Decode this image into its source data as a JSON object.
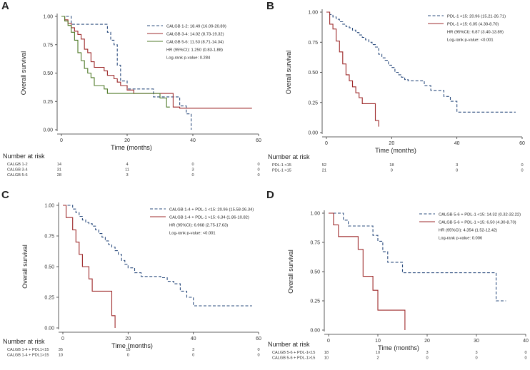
{
  "chart_data": [
    {
      "type": "line",
      "panel": "A",
      "ylabel": "Overall survival",
      "xlabel": "Time (months)",
      "xlim": [
        0,
        60
      ],
      "ylim": [
        0,
        1
      ],
      "xticks": [
        "0",
        "20",
        "40",
        "60"
      ],
      "yticks": [
        "0.00",
        "0.25",
        "0.50",
        "0.75",
        "1.00"
      ],
      "legend": [
        {
          "label": "CALGB 1-2: 18.49 (16.09-20.89)",
          "color": "#2b4c7e",
          "dash": "dashed"
        },
        {
          "label": "CALGB 3-4: 14.02 (8.73-19.32)",
          "color": "#9e2a2b",
          "dash": "solid"
        },
        {
          "label": "CALGB 5-6: 11.53 (8.71-14.34)",
          "color": "#4f7a28",
          "dash": "solid"
        }
      ],
      "stats": [
        "HR (95%CI): 1.250 (0.83-1.88)",
        "Log-rank p-value: 0.284"
      ],
      "series": [
        {
          "name": "CALGB 1-2",
          "x": [
            0,
            2,
            3,
            4,
            6,
            8,
            12,
            14,
            15,
            16,
            17,
            18,
            20,
            22,
            24,
            26,
            28,
            30,
            33,
            36,
            38,
            39.5
          ],
          "y": [
            1,
            1,
            0.93,
            0.93,
            0.93,
            0.93,
            0.93,
            0.86,
            0.79,
            0.75,
            0.57,
            0.43,
            0.36,
            0.36,
            0.36,
            0.36,
            0.29,
            0.29,
            0.29,
            0.21,
            0.14,
            0.0
          ]
        },
        {
          "name": "CALGB 3-4",
          "x": [
            0,
            1,
            2,
            3,
            4,
            5,
            6,
            7,
            8,
            9,
            10,
            11,
            12,
            13,
            14,
            15,
            16,
            17,
            18,
            20,
            22,
            24,
            26,
            28,
            30,
            32,
            34,
            36,
            58
          ],
          "y": [
            1,
            0.97,
            0.94,
            0.9,
            0.87,
            0.84,
            0.8,
            0.71,
            0.68,
            0.6,
            0.55,
            0.55,
            0.55,
            0.52,
            0.48,
            0.48,
            0.45,
            0.42,
            0.39,
            0.35,
            0.32,
            0.32,
            0.32,
            0.32,
            0.32,
            0.32,
            0.2,
            0.19,
            0.19
          ]
        },
        {
          "name": "CALGB 5-6",
          "x": [
            0,
            1,
            2,
            3,
            4,
            5,
            6,
            7,
            8,
            9,
            10,
            11,
            12,
            13,
            14,
            15,
            16,
            17,
            18,
            20,
            22,
            24,
            26,
            28,
            30,
            32,
            33
          ],
          "y": [
            1,
            0.96,
            0.92,
            0.86,
            0.79,
            0.68,
            0.61,
            0.54,
            0.5,
            0.46,
            0.39,
            0.39,
            0.39,
            0.36,
            0.32,
            0.32,
            0.32,
            0.32,
            0.32,
            0.32,
            0.32,
            0.32,
            0.32,
            0.32,
            0.28,
            0.2,
            0.2
          ]
        }
      ],
      "risk_title": "Number at risk",
      "risk_times": [
        0,
        20,
        40,
        60
      ],
      "risk_rows": [
        {
          "label": "CALGB 1-2",
          "counts": [
            "14",
            "4",
            "0",
            "0"
          ]
        },
        {
          "label": "CALGB 3-4",
          "counts": [
            "31",
            "11",
            "3",
            "0"
          ]
        },
        {
          "label": "CALGB 5-6",
          "counts": [
            "28",
            "3",
            "0",
            "0"
          ]
        }
      ]
    },
    {
      "type": "line",
      "panel": "B",
      "ylabel": "Overall survival",
      "xlabel": "Time (months)",
      "xlim": [
        0,
        60
      ],
      "ylim": [
        0,
        1
      ],
      "xticks": [
        "0",
        "20",
        "40",
        "60"
      ],
      "yticks": [
        "0.00",
        "0.25",
        "0.50",
        "0.75",
        "1.00"
      ],
      "legend": [
        {
          "label": "PDL-1 <15: 20.96 (15.21-26.71)",
          "color": "#2b4c7e",
          "dash": "dashed"
        },
        {
          "label": "PDL-1 >15: 6.05 (4.30-8.70)",
          "color": "#9e2a2b",
          "dash": "solid"
        }
      ],
      "stats": [
        "HR (95%CI): 6.87 (3.40-13.89)",
        "Log-rank p-value: <0.001"
      ],
      "series": [
        {
          "name": "PDL-1 <15",
          "x": [
            0,
            1,
            2,
            3,
            4,
            5,
            6,
            7,
            8,
            9,
            10,
            11,
            12,
            13,
            14,
            15,
            16,
            17,
            18,
            19,
            20,
            21,
            22,
            23,
            24,
            25,
            26,
            28,
            30,
            32,
            34,
            36,
            38,
            40,
            58
          ],
          "y": [
            1,
            0.98,
            0.96,
            0.94,
            0.92,
            0.9,
            0.88,
            0.87,
            0.85,
            0.83,
            0.81,
            0.79,
            0.77,
            0.75,
            0.73,
            0.71,
            0.65,
            0.62,
            0.6,
            0.56,
            0.54,
            0.5,
            0.48,
            0.46,
            0.44,
            0.43,
            0.43,
            0.43,
            0.39,
            0.35,
            0.35,
            0.3,
            0.26,
            0.17,
            0.17
          ]
        },
        {
          "name": "PDL-1 >15",
          "x": [
            0,
            1,
            2,
            3,
            4,
            5,
            6,
            7,
            8,
            9,
            10,
            11,
            12,
            13,
            14,
            15,
            16
          ],
          "y": [
            1,
            0.9,
            0.86,
            0.76,
            0.67,
            0.57,
            0.48,
            0.43,
            0.38,
            0.33,
            0.29,
            0.24,
            0.24,
            0.24,
            0.24,
            0.1,
            0.05
          ]
        }
      ],
      "risk_title": "Number at risk",
      "risk_times": [
        0,
        20,
        40,
        60
      ],
      "risk_rows": [
        {
          "label": "PDL-1 <15",
          "counts": [
            "52",
            "18",
            "3",
            "0"
          ]
        },
        {
          "label": "PDL-1 >15",
          "counts": [
            "21",
            "0",
            "0",
            "0"
          ]
        }
      ]
    },
    {
      "type": "line",
      "panel": "C",
      "ylabel": "Overall survival",
      "xlabel": "Time (months)",
      "xlim": [
        0,
        60
      ],
      "ylim": [
        0,
        1
      ],
      "xticks": [
        "0",
        "20",
        "40",
        "60"
      ],
      "yticks": [
        "0.00",
        "0.25",
        "0.50",
        "0.75",
        "1.00"
      ],
      "legend": [
        {
          "label": "CALGB 1-4 + PDL-1 <15: 20.96 (15.58-26.34)",
          "color": "#2b4c7e",
          "dash": "dashed"
        },
        {
          "label": "CALGB 1-4 + PDL-1 >15: 6.34 (1.86-10.82)",
          "color": "#9e2a2b",
          "dash": "solid"
        }
      ],
      "stats": [
        "HR (95%CI): 6.968 (2.75-17.63)",
        "Log-rank p-value: <0.001"
      ],
      "series": [
        {
          "name": "CALGB 1-4 + PDL-1 <15",
          "x": [
            0,
            2,
            3,
            4,
            5,
            6,
            7,
            8,
            9,
            10,
            11,
            12,
            13,
            14,
            15,
            16,
            17,
            18,
            19,
            20,
            22,
            24,
            26,
            28,
            30,
            32,
            34,
            36,
            38,
            40,
            58
          ],
          "y": [
            1,
            1,
            0.97,
            0.94,
            0.91,
            0.88,
            0.86,
            0.85,
            0.83,
            0.8,
            0.77,
            0.74,
            0.71,
            0.68,
            0.66,
            0.63,
            0.6,
            0.55,
            0.52,
            0.49,
            0.45,
            0.42,
            0.42,
            0.42,
            0.41,
            0.38,
            0.36,
            0.3,
            0.25,
            0.18,
            0.18
          ]
        },
        {
          "name": "CALGB 1-4 + PDL-1 >15",
          "x": [
            0,
            1,
            2,
            3,
            4,
            5,
            6,
            7,
            8,
            9,
            10,
            11,
            12,
            13,
            14,
            15,
            16
          ],
          "y": [
            1,
            0.9,
            0.9,
            0.8,
            0.7,
            0.6,
            0.5,
            0.5,
            0.4,
            0.3,
            0.3,
            0.3,
            0.3,
            0.3,
            0.3,
            0.1,
            0.0
          ]
        }
      ],
      "risk_title": "Number at risk",
      "risk_times": [
        0,
        20,
        40,
        60
      ],
      "risk_rows": [
        {
          "label": "CALGB 1-4 + PDL1<15",
          "counts": [
            "35",
            "15",
            "3",
            "0"
          ]
        },
        {
          "label": "CALGB 1-4 + PDL1>15",
          "counts": [
            "10",
            "0",
            "0",
            "0"
          ]
        }
      ]
    },
    {
      "type": "line",
      "panel": "D",
      "ylabel": "Overall survival",
      "xlabel": "Time (months)",
      "xlim": [
        0,
        40
      ],
      "ylim": [
        0,
        1
      ],
      "xticks": [
        "0",
        "10",
        "20",
        "30",
        "40"
      ],
      "yticks": [
        "0.00",
        "0.25",
        "0.50",
        "0.75",
        "1.00"
      ],
      "legend": [
        {
          "label": "CALGB 5-6 + PDL-1 <15: 14.32 (0.32-32.22)",
          "color": "#2b4c7e",
          "dash": "dashed"
        },
        {
          "label": "CALGB 5-6 + PDL-1 >15: 6.50 (4.30-8.70)",
          "color": "#9e2a2b",
          "dash": "solid"
        }
      ],
      "stats": [
        "HR (95%CI): 4.354 (1.52-12.42)",
        "Log-rank p-value: 0.006"
      ],
      "series": [
        {
          "name": "CALGB 5-6 + PDL-1 <15",
          "x": [
            0,
            2,
            3,
            4,
            5,
            6,
            7,
            8,
            9,
            10,
            11,
            12,
            13,
            14,
            15,
            20,
            25,
            30,
            33.5,
            34,
            36
          ],
          "y": [
            1,
            1,
            0.94,
            0.89,
            0.89,
            0.89,
            0.89,
            0.89,
            0.81,
            0.76,
            0.67,
            0.58,
            0.58,
            0.58,
            0.49,
            0.49,
            0.49,
            0.49,
            0.49,
            0.25,
            0.25
          ]
        },
        {
          "name": "CALGB 5-6 + PDL-1 >15",
          "x": [
            0,
            1,
            2,
            3,
            4,
            5,
            6,
            7,
            8,
            9,
            10,
            11,
            12,
            13,
            14,
            15,
            15.5
          ],
          "y": [
            1,
            0.9,
            0.8,
            0.8,
            0.8,
            0.8,
            0.69,
            0.46,
            0.46,
            0.34,
            0.17,
            0.17,
            0.17,
            0.17,
            0.17,
            0.17,
            0.0
          ]
        }
      ],
      "risk_title": "Number at risk",
      "risk_times": [
        0,
        10,
        20,
        30,
        40
      ],
      "risk_rows": [
        {
          "label": "CALGB 5-6 + PDL-1<15",
          "counts": [
            "18",
            "10",
            "3",
            "3",
            "0"
          ]
        },
        {
          "label": "CALGB 5-6 + PDL-1>15",
          "counts": [
            "10",
            "2",
            "0",
            "0",
            "0"
          ]
        }
      ]
    }
  ]
}
